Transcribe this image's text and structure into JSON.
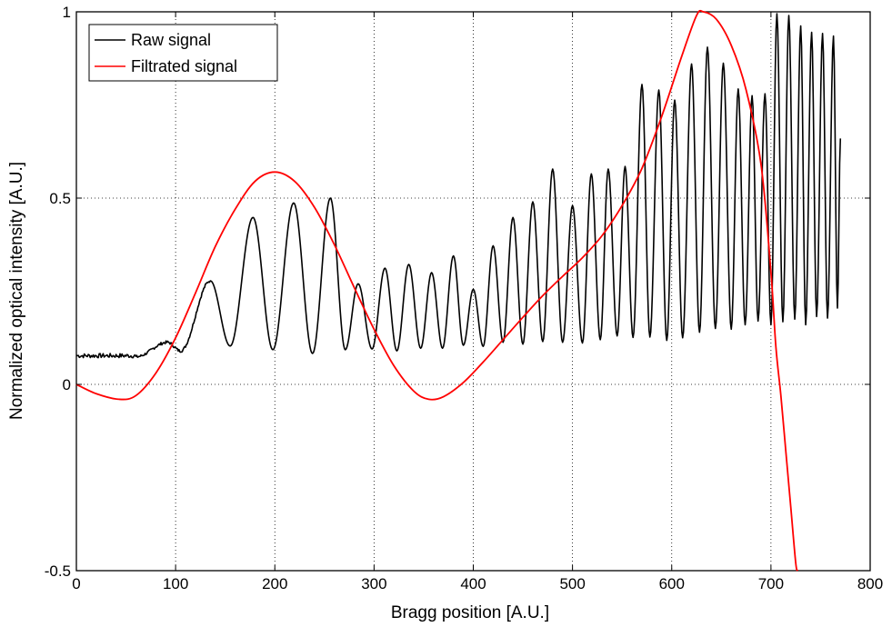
{
  "chart_data": {
    "type": "line",
    "title": "",
    "xlabel": "Bragg position [A.U.]",
    "ylabel": "Normalized optical intensity [A.U.]",
    "xlim": [
      0,
      800
    ],
    "ylim": [
      -0.5,
      1
    ],
    "xticks": [
      0,
      100,
      200,
      300,
      400,
      500,
      600,
      700,
      800
    ],
    "yticks": [
      -0.5,
      0,
      0.5,
      1
    ],
    "ytick_labels": [
      "-0.5",
      "0",
      "0.5",
      "1"
    ],
    "grid": true,
    "legend_position": "top-left",
    "series": [
      {
        "name": "Raw signal",
        "color": "#000000",
        "peaks": [
          [
            92,
            0.113
          ],
          [
            135,
            0.278
          ],
          [
            178,
            0.448
          ],
          [
            219,
            0.487
          ],
          [
            256,
            0.5
          ],
          [
            284,
            0.27
          ],
          [
            311,
            0.312
          ],
          [
            335,
            0.322
          ],
          [
            358,
            0.3
          ],
          [
            380,
            0.345
          ],
          [
            400,
            0.255
          ],
          [
            420,
            0.372
          ],
          [
            440,
            0.448
          ],
          [
            460,
            0.49
          ],
          [
            480,
            0.578
          ],
          [
            500,
            0.48
          ],
          [
            519,
            0.565
          ],
          [
            536,
            0.578
          ],
          [
            553,
            0.585
          ],
          [
            570,
            0.805
          ],
          [
            587,
            0.79
          ],
          [
            603,
            0.763
          ],
          [
            620,
            0.86
          ],
          [
            636,
            0.905
          ],
          [
            652,
            0.862
          ],
          [
            667,
            0.793
          ],
          [
            681,
            0.775
          ],
          [
            694,
            0.78
          ],
          [
            706,
            0.995
          ],
          [
            718,
            0.99
          ],
          [
            730,
            0.962
          ],
          [
            741,
            0.945
          ],
          [
            752,
            0.942
          ],
          [
            763,
            0.935
          ],
          [
            770,
            0.66
          ]
        ],
        "troughs": [
          [
            60,
            0.074
          ],
          [
            105,
            0.09
          ],
          [
            155,
            0.103
          ],
          [
            198,
            0.093
          ],
          [
            238,
            0.083
          ],
          [
            271,
            0.093
          ],
          [
            298,
            0.095
          ],
          [
            323,
            0.09
          ],
          [
            347,
            0.097
          ],
          [
            369,
            0.097
          ],
          [
            390,
            0.105
          ],
          [
            410,
            0.102
          ],
          [
            430,
            0.113
          ],
          [
            450,
            0.108
          ],
          [
            470,
            0.115
          ],
          [
            490,
            0.113
          ],
          [
            510,
            0.111
          ],
          [
            528,
            0.12
          ],
          [
            545,
            0.13
          ],
          [
            561,
            0.126
          ],
          [
            578,
            0.127
          ],
          [
            595,
            0.118
          ],
          [
            611,
            0.125
          ],
          [
            628,
            0.14
          ],
          [
            644,
            0.15
          ],
          [
            660,
            0.148
          ],
          [
            674,
            0.16
          ],
          [
            687,
            0.17
          ],
          [
            700,
            0.16
          ],
          [
            712,
            0.168
          ],
          [
            724,
            0.175
          ],
          [
            735,
            0.16
          ],
          [
            746,
            0.182
          ],
          [
            757,
            0.178
          ],
          [
            767,
            0.205
          ]
        ]
      },
      {
        "name": "Filtrated signal",
        "color": "#ff0000",
        "points": [
          [
            0,
            0.0
          ],
          [
            20,
            -0.025
          ],
          [
            43,
            -0.04
          ],
          [
            60,
            -0.03
          ],
          [
            80,
            0.03
          ],
          [
            100,
            0.125
          ],
          [
            120,
            0.245
          ],
          [
            140,
            0.37
          ],
          [
            160,
            0.47
          ],
          [
            180,
            0.545
          ],
          [
            200,
            0.57
          ],
          [
            220,
            0.545
          ],
          [
            240,
            0.475
          ],
          [
            260,
            0.375
          ],
          [
            280,
            0.26
          ],
          [
            300,
            0.148
          ],
          [
            320,
            0.05
          ],
          [
            340,
            -0.018
          ],
          [
            355,
            -0.04
          ],
          [
            370,
            -0.033
          ],
          [
            390,
            0.005
          ],
          [
            410,
            0.06
          ],
          [
            430,
            0.12
          ],
          [
            450,
            0.18
          ],
          [
            470,
            0.238
          ],
          [
            490,
            0.29
          ],
          [
            510,
            0.34
          ],
          [
            530,
            0.4
          ],
          [
            550,
            0.48
          ],
          [
            570,
            0.58
          ],
          [
            590,
            0.72
          ],
          [
            610,
            0.88
          ],
          [
            625,
            0.99
          ],
          [
            632,
            1.0
          ],
          [
            645,
            0.98
          ],
          [
            660,
            0.91
          ],
          [
            675,
            0.79
          ],
          [
            690,
            0.59
          ],
          [
            700,
            0.3
          ],
          [
            705,
            0.1
          ],
          [
            710,
            -0.03
          ],
          [
            715,
            -0.18
          ],
          [
            720,
            -0.33
          ],
          [
            725,
            -0.48
          ],
          [
            727,
            -0.5
          ]
        ]
      }
    ]
  }
}
